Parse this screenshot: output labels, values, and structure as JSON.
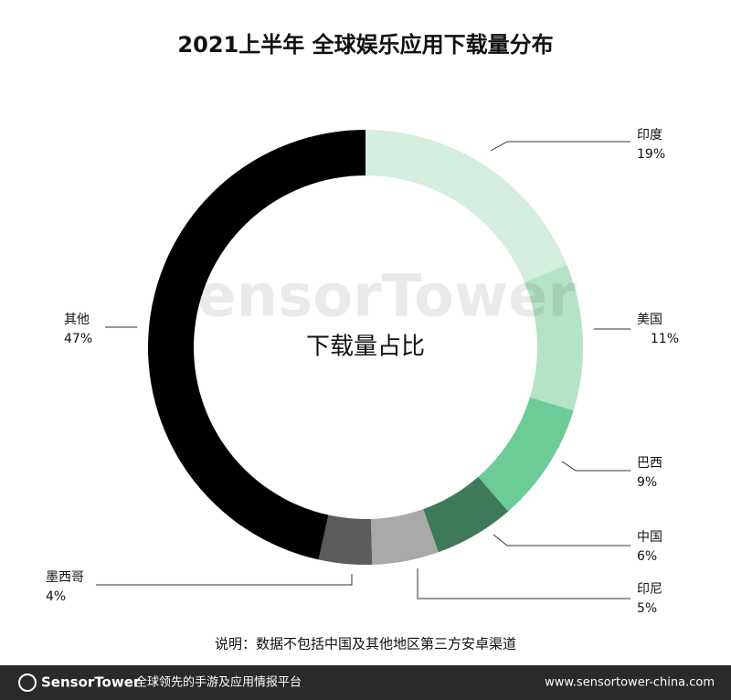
{
  "chart_data": {
    "type": "donut",
    "title": "2021上半年 全球娱乐应用下载量分布",
    "center_label": "下载量占比",
    "categories": [
      "印度",
      "美国",
      "巴西",
      "中国",
      "印尼",
      "墨西哥",
      "其他"
    ],
    "values": [
      19,
      11,
      9,
      6,
      5,
      4,
      47
    ],
    "value_labels": [
      "19%",
      "11%",
      "9%",
      "6%",
      "5%",
      "4%",
      "47%"
    ],
    "colors": [
      "#d4eedf",
      "#b5e3c6",
      "#6dcb97",
      "#3e7a5a",
      "#a9a9a9",
      "#5c5c5c",
      "#000000"
    ],
    "watermark": "SensorTower",
    "note": "说明：数据不包括中国及其他地区第三方安卓渠道"
  },
  "footer": {
    "brand": "SensorTower",
    "tagline": "全球领先的手游及应用情报平台",
    "url": "www.sensortower-china.com"
  }
}
